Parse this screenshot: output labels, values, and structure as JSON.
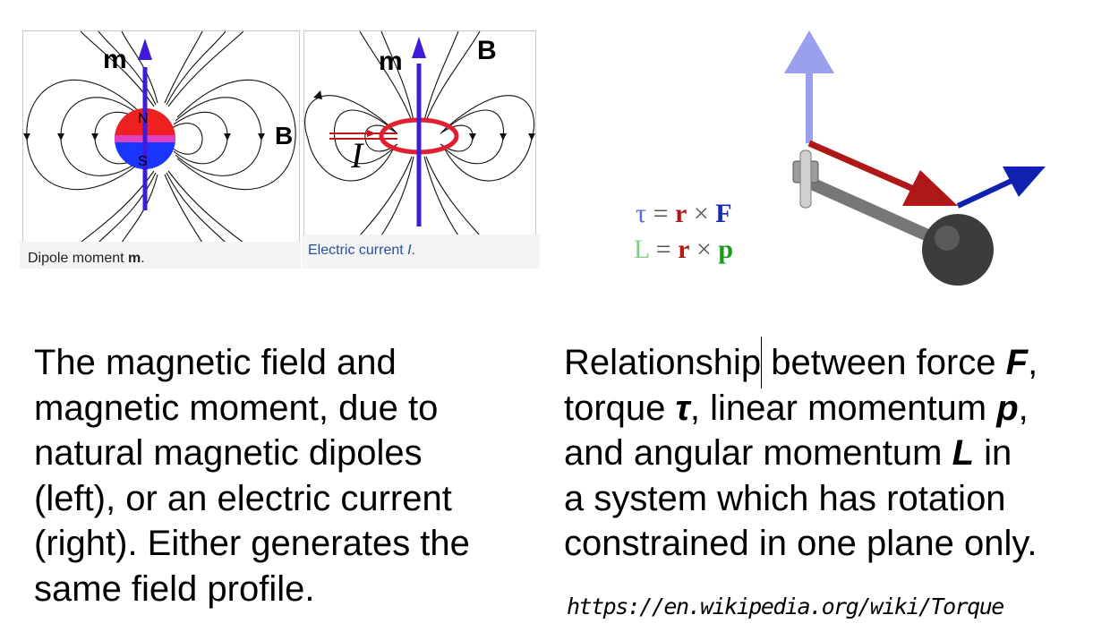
{
  "figures": {
    "dipole": {
      "caption_prefix": "Dipole moment ",
      "caption_symbol": "m",
      "caption_suffix": ".",
      "moment_label": "m",
      "field_label": "B",
      "north_label": "N",
      "south_label": "S"
    },
    "current_loop": {
      "caption_prefix": "Electric current ",
      "caption_symbol": "I",
      "caption_suffix": ".",
      "moment_label": "m",
      "field_label": "B",
      "current_label": "I"
    },
    "torque": {
      "eq1": {
        "lhs": "τ",
        "eq": " = ",
        "r": "r",
        "times": " × ",
        "rhs": "F"
      },
      "eq2": {
        "lhs": "L",
        "eq": " = ",
        "r": "r",
        "times": " × ",
        "rhs": "p"
      }
    }
  },
  "left_text": {
    "lines": [
      "The magnetic field and",
      "magnetic moment, due to",
      "natural magnetic dipoles",
      "(left), or an electric current",
      "(right). Either generates the",
      "same field profile."
    ]
  },
  "right_text": {
    "l1_a": "Relationship between force ",
    "l1_F": "F",
    "l1_b": ",",
    "l2_a": "torque ",
    "l2_tau": "τ",
    "l2_b": ", linear momentum ",
    "l2_p": "p",
    "l2_c": ",",
    "l3_a": "and angular momentum ",
    "l3_L": "L",
    "l3_b": " in",
    "l4": "a system which has rotation",
    "l5": "constrained in one plane only."
  },
  "source_url": "https://en.wikipedia.org/wiki/Torque",
  "colors": {
    "north": "#ee2020",
    "south": "#1a35ff",
    "moment_arrow": "#3f1bd9",
    "current_loop": "#e02030",
    "torque_vec": "#9aa0ee",
    "force_vec": "#b01818",
    "momentum_vec": "#1020b0",
    "L_color": "#7fd27f",
    "p_color": "#1a9a1a",
    "r_color": "#b01818",
    "F_color": "#1a2ab0",
    "tau_color": "#5a6ad8"
  }
}
